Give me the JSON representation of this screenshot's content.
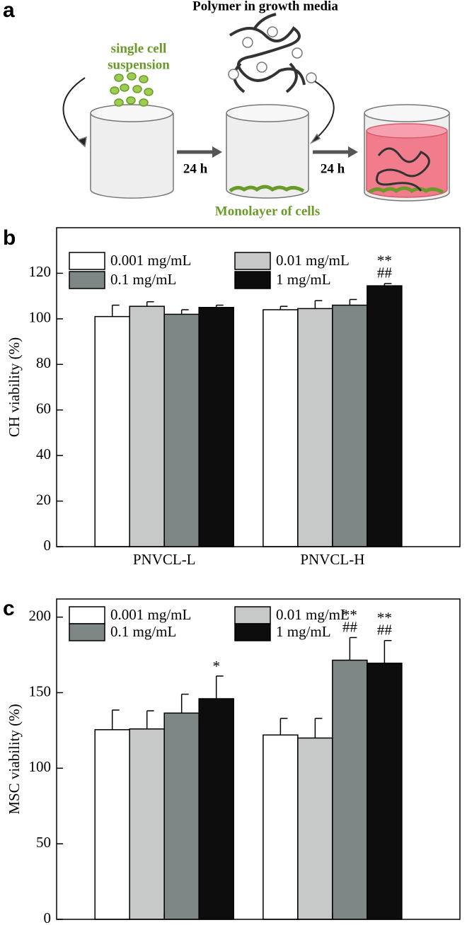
{
  "figure": {
    "panels": [
      "a",
      "b",
      "c"
    ]
  },
  "diagram": {
    "title": "Polymer in growth media",
    "cells": [
      "single cell",
      "suspension"
    ],
    "steps": [
      "24 h",
      "24 h"
    ],
    "monolayer": "Monolayer of cells"
  },
  "chart_data": [
    {
      "type": "bar",
      "y_label": "CH viability (%)",
      "categories": [
        "PNVCL-L",
        "PNVCL-H"
      ],
      "series": [
        {
          "name": "0.001 mg/mL",
          "color": "#ffffff",
          "values": [
            101,
            104
          ],
          "errors": [
            5,
            1.5
          ]
        },
        {
          "name": "0.01 mg/mL",
          "color": "#c6c9c8",
          "values": [
            105.5,
            104.5
          ],
          "errors": [
            2,
            3.5
          ]
        },
        {
          "name": "0.1 mg/mL",
          "color": "#7e8786",
          "values": [
            102,
            106
          ],
          "errors": [
            2,
            2.5
          ]
        },
        {
          "name": "1 mg/mL",
          "color": "#0d0d0d",
          "values": [
            105,
            114.5
          ],
          "errors": [
            1,
            1
          ]
        }
      ],
      "annotations": [
        "**",
        "##"
      ],
      "ylim": [
        0,
        140
      ],
      "yticks": [
        0,
        20,
        40,
        60,
        80,
        100,
        120
      ]
    },
    {
      "type": "bar",
      "y_label": "MSC viability (%)",
      "categories": [
        "PNVCL-L",
        "PNVCL-H"
      ],
      "series": [
        {
          "name": "0.001 mg/mL",
          "color": "#ffffff",
          "values": [
            125.5,
            122
          ],
          "errors": [
            13,
            11
          ]
        },
        {
          "name": "0.01 mg/mL",
          "color": "#c6c9c8",
          "values": [
            126,
            120
          ],
          "errors": [
            12,
            13
          ]
        },
        {
          "name": "0.1 mg/mL",
          "color": "#7e8786",
          "values": [
            136.5,
            171.5
          ],
          "errors": [
            12.5,
            15
          ]
        },
        {
          "name": "1 mg/mL",
          "color": "#0d0d0d",
          "values": [
            146,
            169.5
          ],
          "errors": [
            15,
            15
          ]
        }
      ],
      "annotations": [
        "*",
        "**",
        "##",
        "**",
        "##"
      ],
      "ylim": [
        0,
        212
      ],
      "yticks": [
        0,
        50,
        100,
        150,
        200
      ]
    }
  ]
}
